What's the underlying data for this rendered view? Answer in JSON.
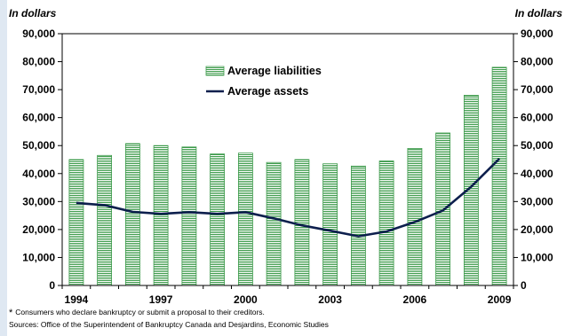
{
  "chart_data": {
    "type": "bar",
    "y_unit_left": "In dollars",
    "y_unit_right": "In dollars",
    "years": [
      1994,
      1995,
      1996,
      1997,
      1998,
      1999,
      2000,
      2001,
      2002,
      2003,
      2004,
      2005,
      2006,
      2007,
      2008,
      2009
    ],
    "x_tick_labels": [
      "1994",
      "1997",
      "2000",
      "2003",
      "2006",
      "2009"
    ],
    "x_tick_years": [
      1994,
      1997,
      2000,
      2003,
      2006,
      2009
    ],
    "ylim": [
      0,
      90000
    ],
    "y_ticks": [
      0,
      10000,
      20000,
      30000,
      40000,
      50000,
      60000,
      70000,
      80000,
      90000
    ],
    "y_tick_labels": [
      "0",
      "10,000",
      "20,000",
      "30,000",
      "40,000",
      "50,000",
      "60,000",
      "70,000",
      "80,000",
      "90,000"
    ],
    "series": [
      {
        "name": "Average liabilities",
        "kind": "bar",
        "color": "#3c9a4a",
        "values": [
          45000,
          46500,
          50700,
          50000,
          49500,
          47000,
          47300,
          44000,
          45000,
          43500,
          42700,
          44500,
          49000,
          54500,
          68000,
          78000
        ]
      },
      {
        "name": "Average assets",
        "kind": "line",
        "color": "#0d1f4d",
        "values": [
          29500,
          28700,
          26300,
          25600,
          26200,
          25600,
          26200,
          24000,
          21500,
          19600,
          17600,
          19300,
          22700,
          26800,
          35300,
          45300
        ]
      }
    ],
    "legend_position": "top-center",
    "grid": false
  },
  "footnote": {
    "marker": "*",
    "text": "Consumers who declare bankruptcy or submit a proposal to their creditors.",
    "sources": "Sources: Office of the Superintendent of Bankruptcy Canada and Desjardins, Economic Studies"
  }
}
